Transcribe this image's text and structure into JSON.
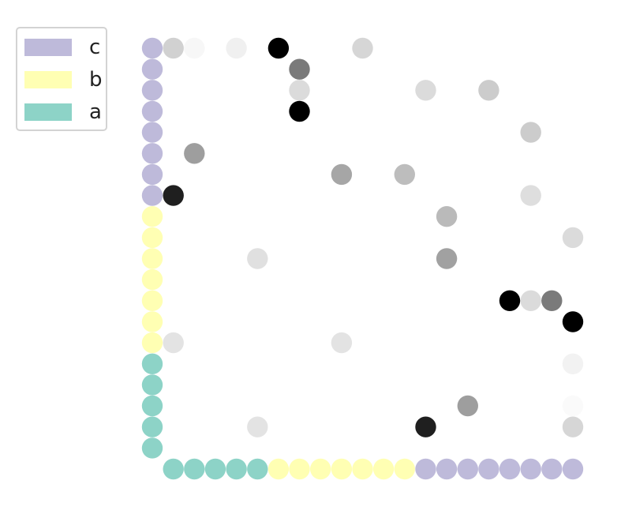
{
  "chart_data": {
    "type": "scatter",
    "title": "",
    "xlabel": "",
    "ylabel": "",
    "grid": false,
    "axes_visible": false,
    "legend_position": "top-left",
    "grid_size": 21,
    "legend": [
      {
        "label": "c",
        "color": "#bebada"
      },
      {
        "label": "b",
        "color": "#ffffb3"
      },
      {
        "label": "a",
        "color": "#8dd3c7"
      }
    ],
    "border_series": [
      {
        "name": "a",
        "color": "#8dd3c7",
        "left_rows": [
          0,
          1,
          2,
          3,
          4
        ],
        "bottom_cols": [
          1,
          2,
          3,
          4,
          5
        ]
      },
      {
        "name": "b",
        "color": "#ffffb3",
        "left_rows": [
          5,
          6,
          7,
          8,
          9,
          10,
          11
        ],
        "bottom_cols": [
          6,
          7,
          8,
          9,
          10,
          11,
          12
        ]
      },
      {
        "name": "c",
        "color": "#bebada",
        "left_rows": [
          12,
          13,
          14,
          15,
          16,
          17,
          18,
          19
        ],
        "bottom_cols": [
          13,
          14,
          15,
          16,
          17,
          18,
          19,
          20
        ]
      }
    ],
    "matrix_points": [
      {
        "x": 1,
        "y": 19,
        "v": 0.18
      },
      {
        "x": 2,
        "y": 19,
        "v": 0.03
      },
      {
        "x": 4,
        "y": 19,
        "v": 0.06
      },
      {
        "x": 6,
        "y": 19,
        "v": 1.0
      },
      {
        "x": 10,
        "y": 19,
        "v": 0.16
      },
      {
        "x": 7,
        "y": 18,
        "v": 0.52
      },
      {
        "x": 7,
        "y": 17,
        "v": 0.14
      },
      {
        "x": 13,
        "y": 17,
        "v": 0.14
      },
      {
        "x": 16,
        "y": 17,
        "v": 0.2
      },
      {
        "x": 7,
        "y": 16,
        "v": 1.0
      },
      {
        "x": 18,
        "y": 15,
        "v": 0.2
      },
      {
        "x": 2,
        "y": 14,
        "v": 0.38
      },
      {
        "x": 9,
        "y": 13,
        "v": 0.35
      },
      {
        "x": 12,
        "y": 13,
        "v": 0.26
      },
      {
        "x": 1,
        "y": 12,
        "v": 0.88
      },
      {
        "x": 18,
        "y": 12,
        "v": 0.13
      },
      {
        "x": 14,
        "y": 11,
        "v": 0.27
      },
      {
        "x": 20,
        "y": 10,
        "v": 0.14
      },
      {
        "x": 5,
        "y": 9,
        "v": 0.12
      },
      {
        "x": 14,
        "y": 9,
        "v": 0.37
      },
      {
        "x": 17,
        "y": 7,
        "v": 1.0
      },
      {
        "x": 18,
        "y": 7,
        "v": 0.14
      },
      {
        "x": 19,
        "y": 7,
        "v": 0.52
      },
      {
        "x": 20,
        "y": 6,
        "v": 1.0
      },
      {
        "x": 1,
        "y": 5,
        "v": 0.11
      },
      {
        "x": 9,
        "y": 5,
        "v": 0.11
      },
      {
        "x": 20,
        "y": 4,
        "v": 0.05
      },
      {
        "x": 15,
        "y": 2,
        "v": 0.38
      },
      {
        "x": 20,
        "y": 2,
        "v": 0.02
      },
      {
        "x": 5,
        "y": 1,
        "v": 0.11
      },
      {
        "x": 13,
        "y": 1,
        "v": 0.88
      },
      {
        "x": 20,
        "y": 1,
        "v": 0.16
      }
    ]
  }
}
